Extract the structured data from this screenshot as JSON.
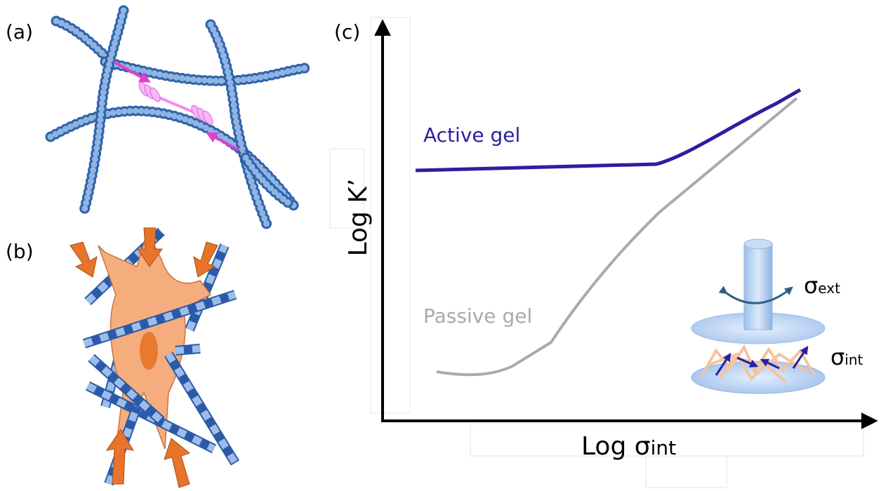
{
  "panels": {
    "a": "(a)",
    "b": "(b)",
    "c": "(c)"
  },
  "plot": {
    "y_label": "Log K’",
    "x_label": {
      "main": "Log σ",
      "sub": "int"
    },
    "curves": [
      {
        "label": "Active gel"
      },
      {
        "label": "Passive gel"
      }
    ]
  },
  "inset": {
    "external_stress": {
      "symbol": "σ",
      "sub": "ext"
    },
    "internal_stress": {
      "symbol": "σ",
      "sub": "int"
    }
  }
}
